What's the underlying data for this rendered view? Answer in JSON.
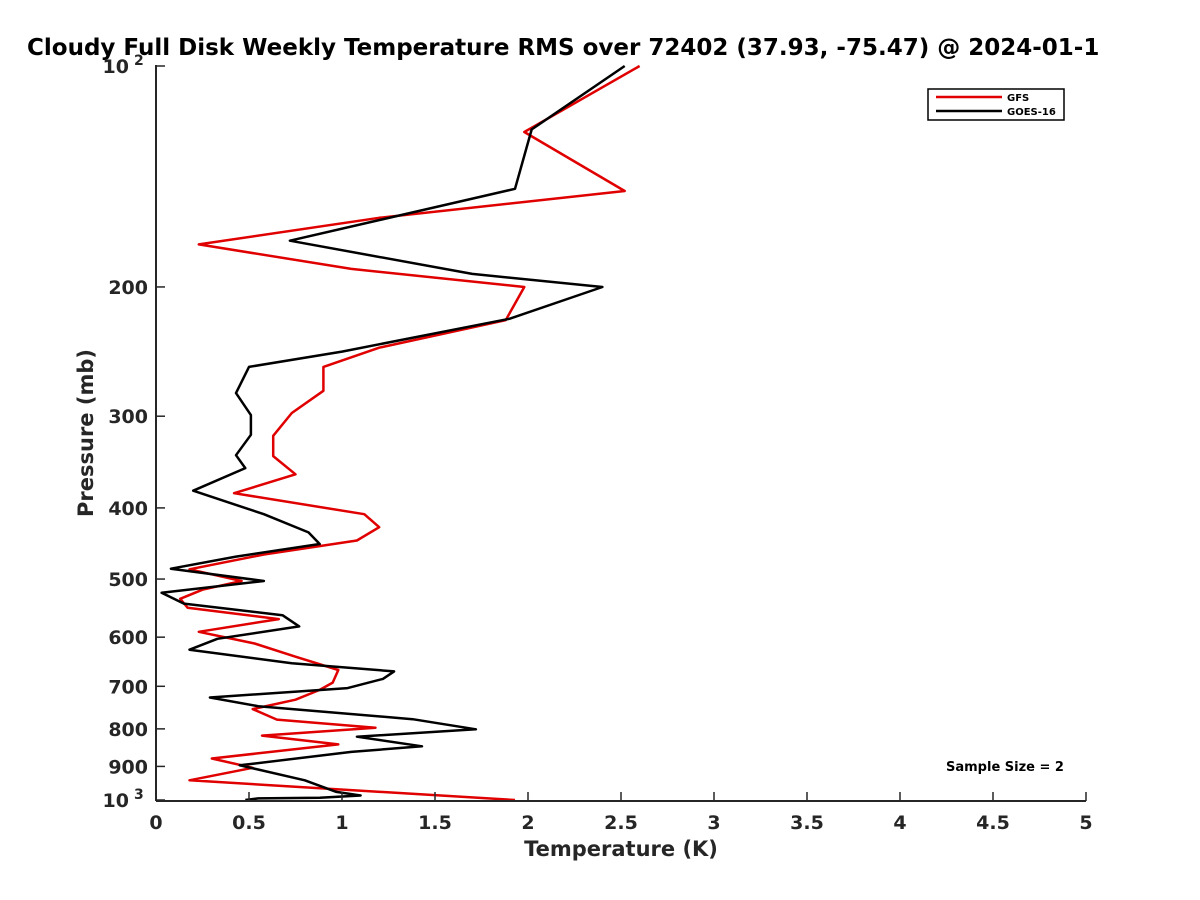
{
  "chart_data": {
    "type": "line",
    "title": "Cloudy Full Disk Weekly Temperature RMS over 72402 (37.93, -75.47) @ 2024-01-1",
    "xlabel": "Temperature (K)",
    "ylabel": "Pressure (mb)",
    "xlim": [
      0,
      5
    ],
    "ylim": [
      100,
      1000
    ],
    "y_scale": "log",
    "y_reversed": true,
    "grid": false,
    "legend_position": "top-right",
    "x_ticks": [
      0,
      0.5,
      1,
      1.5,
      2,
      2.5,
      3,
      3.5,
      4,
      4.5,
      5
    ],
    "x_tick_labels": [
      "0",
      "0.5",
      "1",
      "1.5",
      "2",
      "2.5",
      "3",
      "3.5",
      "4",
      "4.5",
      "5"
    ],
    "y_ticks": [
      {
        "value": 100,
        "label": "10",
        "sup": "2"
      },
      {
        "value": 200,
        "label": "200",
        "sup": ""
      },
      {
        "value": 300,
        "label": "300",
        "sup": ""
      },
      {
        "value": 400,
        "label": "400",
        "sup": ""
      },
      {
        "value": 500,
        "label": "500",
        "sup": ""
      },
      {
        "value": 600,
        "label": "600",
        "sup": ""
      },
      {
        "value": 700,
        "label": "700",
        "sup": ""
      },
      {
        "value": 800,
        "label": "800",
        "sup": ""
      },
      {
        "value": 900,
        "label": "900",
        "sup": ""
      },
      {
        "value": 1000,
        "label": "10",
        "sup": "3"
      }
    ],
    "series": [
      {
        "name": "GFS",
        "color": "#e00000",
        "points": [
          [
            2.6,
            100
          ],
          [
            1.98,
            123
          ],
          [
            2.52,
            148
          ],
          [
            1.2,
            161
          ],
          [
            0.23,
            175
          ],
          [
            1.05,
            189
          ],
          [
            1.98,
            200
          ],
          [
            1.88,
            222
          ],
          [
            1.2,
            242
          ],
          [
            0.9,
            257
          ],
          [
            0.9,
            277
          ],
          [
            0.73,
            297
          ],
          [
            0.63,
            319
          ],
          [
            0.63,
            340
          ],
          [
            0.75,
            360
          ],
          [
            0.42,
            382
          ],
          [
            1.12,
            408
          ],
          [
            1.2,
            425
          ],
          [
            1.08,
            443
          ],
          [
            0.58,
            463
          ],
          [
            0.18,
            485
          ],
          [
            0.46,
            503
          ],
          [
            0.25,
            517
          ],
          [
            0.13,
            532
          ],
          [
            0.17,
            547
          ],
          [
            0.66,
            567
          ],
          [
            0.23,
            590
          ],
          [
            0.53,
            612
          ],
          [
            0.75,
            638
          ],
          [
            0.98,
            665
          ],
          [
            0.95,
            692
          ],
          [
            0.88,
            708
          ],
          [
            0.75,
            730
          ],
          [
            0.52,
            752
          ],
          [
            0.65,
            777
          ],
          [
            1.18,
            797
          ],
          [
            0.57,
            817
          ],
          [
            0.98,
            840
          ],
          [
            0.3,
            878
          ],
          [
            0.52,
            904
          ],
          [
            0.18,
            940
          ],
          [
            1.93,
            1000
          ]
        ]
      },
      {
        "name": "GOES-16",
        "color": "#000000",
        "points": [
          [
            2.52,
            100
          ],
          [
            2.02,
            122
          ],
          [
            1.93,
            147
          ],
          [
            0.72,
            173
          ],
          [
            1.7,
            192
          ],
          [
            2.4,
            200
          ],
          [
            1.9,
            221
          ],
          [
            1.0,
            245
          ],
          [
            0.5,
            257
          ],
          [
            0.43,
            279
          ],
          [
            0.51,
            299
          ],
          [
            0.51,
            318
          ],
          [
            0.43,
            339
          ],
          [
            0.48,
            353
          ],
          [
            0.2,
            379
          ],
          [
            0.58,
            408
          ],
          [
            0.82,
            432
          ],
          [
            0.88,
            448
          ],
          [
            0.43,
            466
          ],
          [
            0.08,
            484
          ],
          [
            0.58,
            503
          ],
          [
            0.03,
            522
          ],
          [
            0.15,
            540
          ],
          [
            0.68,
            560
          ],
          [
            0.77,
            580
          ],
          [
            0.33,
            603
          ],
          [
            0.18,
            624
          ],
          [
            0.73,
            651
          ],
          [
            1.28,
            668
          ],
          [
            1.22,
            684
          ],
          [
            1.03,
            704
          ],
          [
            0.29,
            725
          ],
          [
            0.55,
            745
          ],
          [
            1.38,
            776
          ],
          [
            1.72,
            801
          ],
          [
            1.08,
            820
          ],
          [
            1.43,
            845
          ],
          [
            1.05,
            860
          ],
          [
            0.45,
            897
          ],
          [
            0.8,
            940
          ],
          [
            0.97,
            975
          ],
          [
            1.1,
            986
          ],
          [
            0.88,
            993
          ],
          [
            0.55,
            995
          ],
          [
            0.48,
            1000
          ]
        ]
      }
    ],
    "annotation": "Sample Size = 2"
  }
}
